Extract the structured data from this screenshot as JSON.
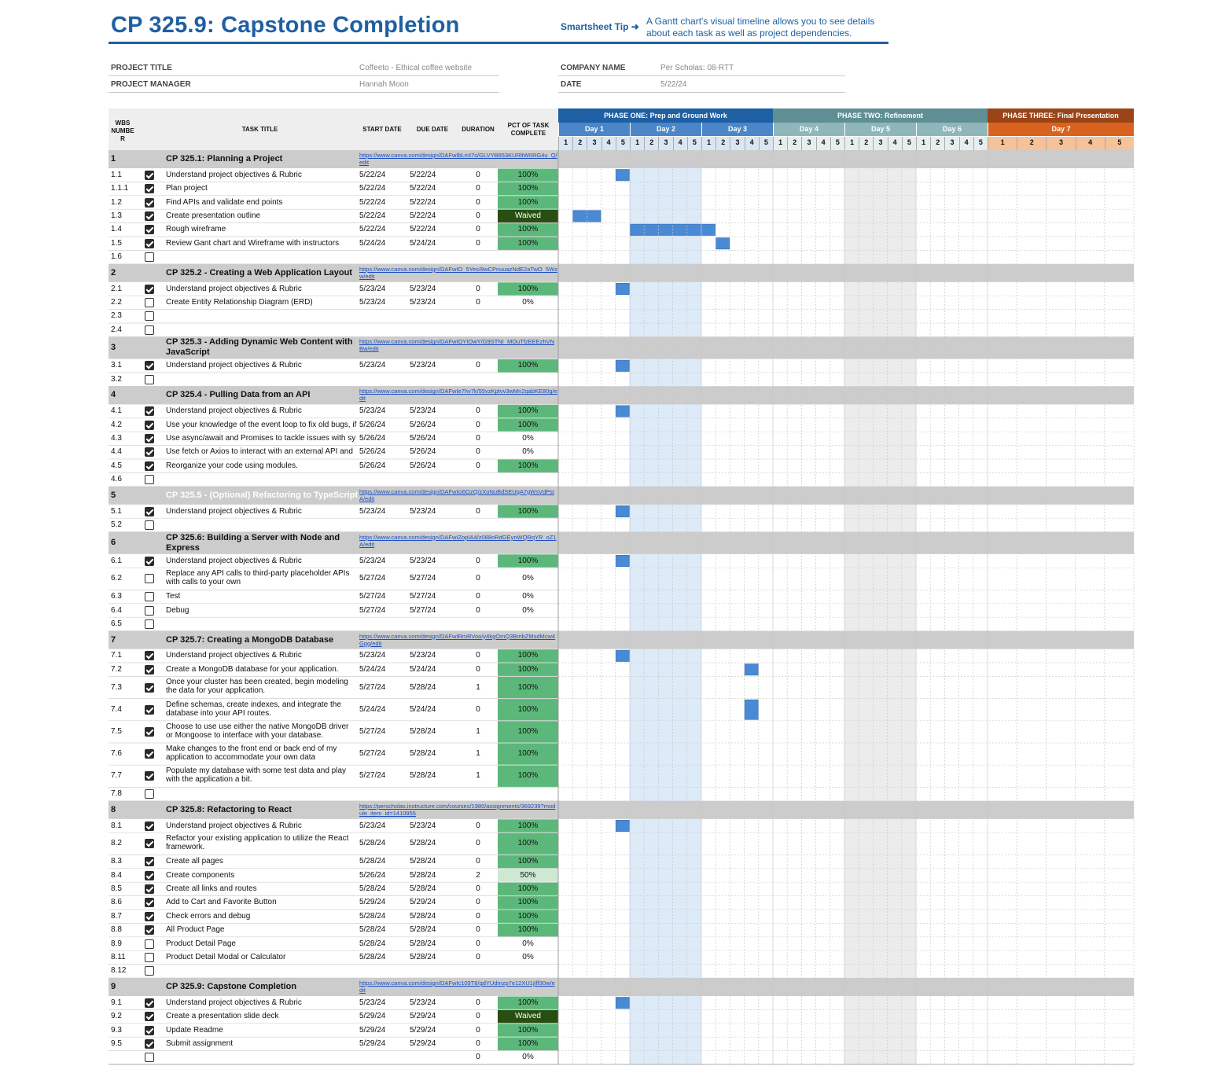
{
  "header": {
    "title": "CP 325.9: Capstone Completion",
    "tip_label": "Smartsheet Tip ➜",
    "tip_text": "A Gantt chart's visual timeline allows you to see details about each task as well as project dependencies."
  },
  "project": {
    "title_label": "PROJECT TITLE",
    "title_value": "Coffeeto - Ethical coffee website",
    "manager_label": "PROJECT MANAGER",
    "manager_value": "Hannah Moon",
    "company_label": "COMPANY NAME",
    "company_value": "Per Scholas: 08-RTT",
    "date_label": "DATE",
    "date_value": "5/22/24"
  },
  "columns": {
    "wbs": "WBS NUMBE R",
    "task": "TASK TITLE",
    "start": "START DATE",
    "due": "DUE DATE",
    "duration": "DURATION",
    "pct": "PCT OF TASK COMPLETE"
  },
  "phases": [
    {
      "label": "PHASE ONE: Prep and Ground Work",
      "color": "#1f5fa3",
      "days": [
        "Day 1",
        "Day 2",
        "Day 3"
      ],
      "day_color": "#4a86c8",
      "slot_color": "#dbe6f3"
    },
    {
      "label": "PHASE TWO: Refinement",
      "color": "#5f8f95",
      "days": [
        "Day 4",
        "Day 5",
        "Day 6"
      ],
      "day_color": "#8fb7bb",
      "slot_color": "#e6efef"
    },
    {
      "label": "PHASE THREE: Final Presentation",
      "color": "#9a4418",
      "days": [
        "Day 7"
      ],
      "day_color": "#d9631e",
      "slot_color": "#f6c29a"
    }
  ],
  "slot_labels": [
    "1",
    "2",
    "3",
    "4",
    "5"
  ],
  "colors": {
    "section_bg": "#cccccc",
    "header_bg": "#eeeeee",
    "pct_green": "#5cb87a",
    "pct_light": "#cfe8d4",
    "pct_waived": "#274e13",
    "bar": "#4a89d4",
    "day2_shade": "#ddeaf7",
    "day5_shade": "#ececec"
  },
  "rows": [
    {
      "type": "section",
      "wbs": "1",
      "title": "CP 325.1: Planning a Project",
      "link": "https://www.canva.com/design/DAFwIbLmI7s/GLVYB653KURltWIIRG4u_Q/edit"
    },
    {
      "type": "task",
      "wbs": "1.1",
      "checked": true,
      "title": "Understand project objectives & Rubric",
      "start": "5/22/24",
      "due": "5/22/24",
      "duration": "0",
      "pct": "100%",
      "bar": [
        4,
        1
      ]
    },
    {
      "type": "task",
      "wbs": "1.1.1",
      "checked": true,
      "title": "Plan project",
      "start": "5/22/24",
      "due": "5/22/24",
      "duration": "0",
      "pct": "100%"
    },
    {
      "type": "task",
      "wbs": "1.2",
      "checked": true,
      "title": "Find APIs and validate end points",
      "start": "5/22/24",
      "due": "5/22/24",
      "duration": "0",
      "pct": "100%"
    },
    {
      "type": "task",
      "wbs": "1.3",
      "checked": true,
      "title": "Create presentation outline",
      "start": "5/22/24",
      "due": "5/22/24",
      "duration": "0",
      "pct": "Waived",
      "bar": [
        1,
        2
      ]
    },
    {
      "type": "task",
      "wbs": "1.4",
      "checked": true,
      "title": "Rough wireframe",
      "start": "5/22/24",
      "due": "5/22/24",
      "duration": "0",
      "pct": "100%",
      "bar": [
        5,
        6
      ]
    },
    {
      "type": "task",
      "wbs": "1.5",
      "checked": true,
      "title": "Review Gant chart and Wireframe with instructors",
      "start": "5/24/24",
      "due": "5/24/24",
      "duration": "0",
      "pct": "100%",
      "bar": [
        11,
        1
      ]
    },
    {
      "type": "task",
      "wbs": "1.6",
      "checked": false,
      "title": "",
      "start": "",
      "due": "",
      "duration": "",
      "pct": ""
    },
    {
      "type": "section",
      "wbs": "2",
      "title": "CP 325.2 - Creating a Web Application Layout",
      "link": "https://www.canva.com/design/DAFwIO_5Yes/8wCPnuuazNdE2aTwO_5Wzw/edit"
    },
    {
      "type": "task",
      "wbs": "2.1",
      "checked": true,
      "title": "Understand project objectives & Rubric",
      "start": "5/23/24",
      "due": "5/23/24",
      "duration": "0",
      "pct": "100%",
      "bar": [
        4,
        1
      ]
    },
    {
      "type": "task",
      "wbs": "2.2",
      "checked": false,
      "title": "Create Entity Relationship Diagram (ERD)",
      "start": "5/23/24",
      "due": "5/23/24",
      "duration": "0",
      "pct": "0%"
    },
    {
      "type": "task",
      "wbs": "2.3",
      "checked": false,
      "title": "",
      "start": "",
      "due": "",
      "duration": "",
      "pct": ""
    },
    {
      "type": "task",
      "wbs": "2.4",
      "checked": false,
      "title": "",
      "start": "",
      "due": "",
      "duration": "",
      "pct": ""
    },
    {
      "type": "section",
      "wbs": "3",
      "title": "CP 325.3 - Adding Dynamic Web Content with JavaScript",
      "link": "https://www.canva.com/design/DAFwIOYIOwY/G9STNI_MOuTfzEEEzhVNBw/edit",
      "tall": true
    },
    {
      "type": "task",
      "wbs": "3.1",
      "checked": true,
      "title": "Understand project objectives & Rubric",
      "start": "5/23/24",
      "due": "5/23/24",
      "duration": "0",
      "pct": "100%",
      "bar": [
        4,
        1
      ]
    },
    {
      "type": "task",
      "wbs": "3.2",
      "checked": false,
      "title": "",
      "start": "",
      "due": "",
      "duration": "",
      "pct": ""
    },
    {
      "type": "section",
      "wbs": "4",
      "title": "CP 325.4 - Pulling Data from an API",
      "link": "https://www.canva.com/design/DAFwIe7hv7k/55vzKptvv3wMn2qabKE80g/edit"
    },
    {
      "type": "task",
      "wbs": "4.1",
      "checked": true,
      "title": "Understand project objectives & Rubric",
      "start": "5/23/24",
      "due": "5/23/24",
      "duration": "0",
      "pct": "100%",
      "bar": [
        4,
        1
      ]
    },
    {
      "type": "task",
      "wbs": "4.2",
      "checked": true,
      "title": "Use your knowledge of the event loop to fix old bugs, if",
      "start": "5/26/24",
      "due": "5/26/24",
      "duration": "0",
      "pct": "100%"
    },
    {
      "type": "task",
      "wbs": "4.3",
      "checked": true,
      "title": "Use async/await and Promises to tackle issues with sy",
      "start": "5/26/24",
      "due": "5/26/24",
      "duration": "0",
      "pct": "0%"
    },
    {
      "type": "task",
      "wbs": "4.4",
      "checked": true,
      "title": "Use fetch or Axios to interact with an external API and",
      "start": "5/26/24",
      "due": "5/26/24",
      "duration": "0",
      "pct": "0%"
    },
    {
      "type": "task",
      "wbs": "4.5",
      "checked": true,
      "title": "Reorganize your code using modules.",
      "start": "5/26/24",
      "due": "5/26/24",
      "duration": "0",
      "pct": "100%"
    },
    {
      "type": "task",
      "wbs": "4.6",
      "checked": false,
      "title": "",
      "start": "",
      "due": "",
      "duration": "",
      "pct": ""
    },
    {
      "type": "section",
      "wbs": "5",
      "title": "CP 325.5 - (Optional) Refactoring to TypeScript",
      "link": "https://www.canva.com/design/DAFwIci6OzQ/zXoNuBdSEUqA7gWsVdPsIA/edit",
      "muted": true
    },
    {
      "type": "task",
      "wbs": "5.1",
      "checked": true,
      "title": "Understand project objectives & Rubric",
      "start": "5/23/24",
      "due": "5/23/24",
      "duration": "0",
      "pct": "100%",
      "bar": [
        4,
        1
      ]
    },
    {
      "type": "task",
      "wbs": "5.2",
      "checked": false,
      "title": "",
      "start": "",
      "due": "",
      "duration": "",
      "pct": ""
    },
    {
      "type": "section",
      "wbs": "6",
      "title": "CP 325.6: Building a Server with Node and Express",
      "link": "https://www.canva.com/design/DAFwIZopIA4/z088oRdGEynWQRqYR_oZ1A/edit",
      "tall": true
    },
    {
      "type": "task",
      "wbs": "6.1",
      "checked": true,
      "title": "Understand project objectives & Rubric",
      "start": "5/23/24",
      "due": "5/23/24",
      "duration": "0",
      "pct": "100%",
      "bar": [
        4,
        1
      ]
    },
    {
      "type": "task",
      "wbs": "6.2",
      "checked": false,
      "title": "Replace any API calls to third-party placeholder APIs with calls to your own",
      "start": "5/27/24",
      "due": "5/27/24",
      "duration": "0",
      "pct": "0%",
      "tall": true
    },
    {
      "type": "task",
      "wbs": "6.3",
      "checked": false,
      "title": "Test",
      "start": "5/27/24",
      "due": "5/27/24",
      "duration": "0",
      "pct": "0%"
    },
    {
      "type": "task",
      "wbs": "6.4",
      "checked": false,
      "title": "Debug",
      "start": "5/27/24",
      "due": "5/27/24",
      "duration": "0",
      "pct": "0%"
    },
    {
      "type": "task",
      "wbs": "6.5",
      "checked": false,
      "title": "",
      "start": "",
      "due": "",
      "duration": "",
      "pct": ""
    },
    {
      "type": "section",
      "wbs": "7",
      "title": "CP 325.7:  Creating a MongoDB Database",
      "link": "https://www.canva.com/design/DAFwIRmRVoo/y4kgOmQ3BmbZMsdMcw4Gpg/edit"
    },
    {
      "type": "task",
      "wbs": "7.1",
      "checked": true,
      "title": "Understand project objectives & Rubric",
      "start": "5/23/24",
      "due": "5/23/24",
      "duration": "0",
      "pct": "100%",
      "bar": [
        4,
        1
      ]
    },
    {
      "type": "task",
      "wbs": "7.2",
      "checked": true,
      "title": "Create a MongoDB database for your application.",
      "start": "5/24/24",
      "due": "5/24/24",
      "duration": "0",
      "pct": "100%",
      "bar": [
        13,
        1
      ]
    },
    {
      "type": "task",
      "wbs": "7.3",
      "checked": true,
      "title": "Once your cluster has been created, begin modeling the data for your application.",
      "start": "5/27/24",
      "due": "5/28/24",
      "duration": "1",
      "pct": "100%",
      "tall": true
    },
    {
      "type": "task",
      "wbs": "7.4",
      "checked": true,
      "title": "Define schemas, create indexes, and integrate the database into your API routes.",
      "start": "5/24/24",
      "due": "5/24/24",
      "duration": "0",
      "pct": "100%",
      "tall": true,
      "bar": [
        13,
        1
      ]
    },
    {
      "type": "task",
      "wbs": "7.5",
      "checked": true,
      "title": "Choose to use use either the native MongoDB driver or Mongoose to interface with your database.",
      "start": "5/27/24",
      "due": "5/28/24",
      "duration": "1",
      "pct": "100%",
      "tall": true
    },
    {
      "type": "task",
      "wbs": "7.6",
      "checked": true,
      "title": "Make changes to the front end or back end of my application to accommodate your own data",
      "start": "5/27/24",
      "due": "5/28/24",
      "duration": "1",
      "pct": "100%",
      "tall": true
    },
    {
      "type": "task",
      "wbs": "7.7",
      "checked": true,
      "title": "Populate my database with some test data and play with the application a bit.",
      "start": "5/27/24",
      "due": "5/28/24",
      "duration": "1",
      "pct": "100%",
      "tall": true
    },
    {
      "type": "task",
      "wbs": "7.8",
      "checked": false,
      "title": "",
      "start": "",
      "due": "",
      "duration": "",
      "pct": ""
    },
    {
      "type": "section",
      "wbs": "8",
      "title": "CP 325.8:  Refactoring to React",
      "link": "https://perscholas.instructure.com/courses/1980/assignments/369239?module_item_id=1410955"
    },
    {
      "type": "task",
      "wbs": "8.1",
      "checked": true,
      "title": "Understand project objectives & Rubric",
      "start": "5/23/24",
      "due": "5/23/24",
      "duration": "0",
      "pct": "100%",
      "bar": [
        4,
        1
      ]
    },
    {
      "type": "task",
      "wbs": "8.2",
      "checked": true,
      "title": "Refactor your existing application to utilize the React framework.",
      "start": "5/28/24",
      "due": "5/28/24",
      "duration": "0",
      "pct": "100%",
      "tall": true
    },
    {
      "type": "task",
      "wbs": "8.3",
      "checked": true,
      "title": "Create all pages",
      "start": "5/28/24",
      "due": "5/28/24",
      "duration": "0",
      "pct": "100%"
    },
    {
      "type": "task",
      "wbs": "8.4",
      "checked": true,
      "title": "Create components",
      "start": "5/26/24",
      "due": "5/28/24",
      "duration": "2",
      "pct": "50%"
    },
    {
      "type": "task",
      "wbs": "8.5",
      "checked": true,
      "title": "Create all links and routes",
      "start": "5/28/24",
      "due": "5/28/24",
      "duration": "0",
      "pct": "100%"
    },
    {
      "type": "task",
      "wbs": "8.6",
      "checked": true,
      "title": "Add to Cart and Favorite Button",
      "start": "5/29/24",
      "due": "5/29/24",
      "duration": "0",
      "pct": "100%"
    },
    {
      "type": "task",
      "wbs": "8.7",
      "checked": true,
      "title": "Check errors and debug",
      "start": "5/28/24",
      "due": "5/28/24",
      "duration": "0",
      "pct": "100%"
    },
    {
      "type": "task",
      "wbs": "8.8",
      "checked": true,
      "title": "All Product Page",
      "start": "5/28/24",
      "due": "5/28/24",
      "duration": "0",
      "pct": "100%"
    },
    {
      "type": "task",
      "wbs": "8.9",
      "checked": false,
      "title": "Product Detail Page",
      "start": "5/28/24",
      "due": "5/28/24",
      "duration": "0",
      "pct": "0%"
    },
    {
      "type": "task",
      "wbs": "8.11",
      "checked": false,
      "title": "Product Detail Modal or Calculator",
      "start": "5/28/24",
      "due": "5/28/24",
      "duration": "0",
      "pct": "0%"
    },
    {
      "type": "task",
      "wbs": "8.12",
      "checked": false,
      "title": "",
      "start": "",
      "due": "",
      "duration": "",
      "pct": ""
    },
    {
      "type": "section",
      "wbs": "9",
      "title": "CP 325.9: Capstone Completion",
      "link": "https://www.canva.com/design/DAFwIc109T8/gdYUdmzp7e12XU1jIff30w/edit"
    },
    {
      "type": "task",
      "wbs": "9.1",
      "checked": true,
      "title": "Understand project objectives & Rubric",
      "start": "5/23/24",
      "due": "5/23/24",
      "duration": "0",
      "pct": "100%",
      "bar": [
        4,
        1
      ]
    },
    {
      "type": "task",
      "wbs": "9.2",
      "checked": true,
      "title": "Create a presentation slide deck",
      "start": "5/29/24",
      "due": "5/29/24",
      "duration": "0",
      "pct": "Waived"
    },
    {
      "type": "task",
      "wbs": "9.3",
      "checked": true,
      "title": "Update Readme",
      "start": "5/29/24",
      "due": "5/29/24",
      "duration": "0",
      "pct": "100%"
    },
    {
      "type": "task",
      "wbs": "9.5",
      "checked": true,
      "title": "Submit assignment",
      "start": "5/29/24",
      "due": "5/29/24",
      "duration": "0",
      "pct": "100%"
    },
    {
      "type": "task",
      "wbs": "",
      "checked": false,
      "title": "",
      "start": "",
      "due": "",
      "duration": "0",
      "pct": "0%"
    }
  ]
}
